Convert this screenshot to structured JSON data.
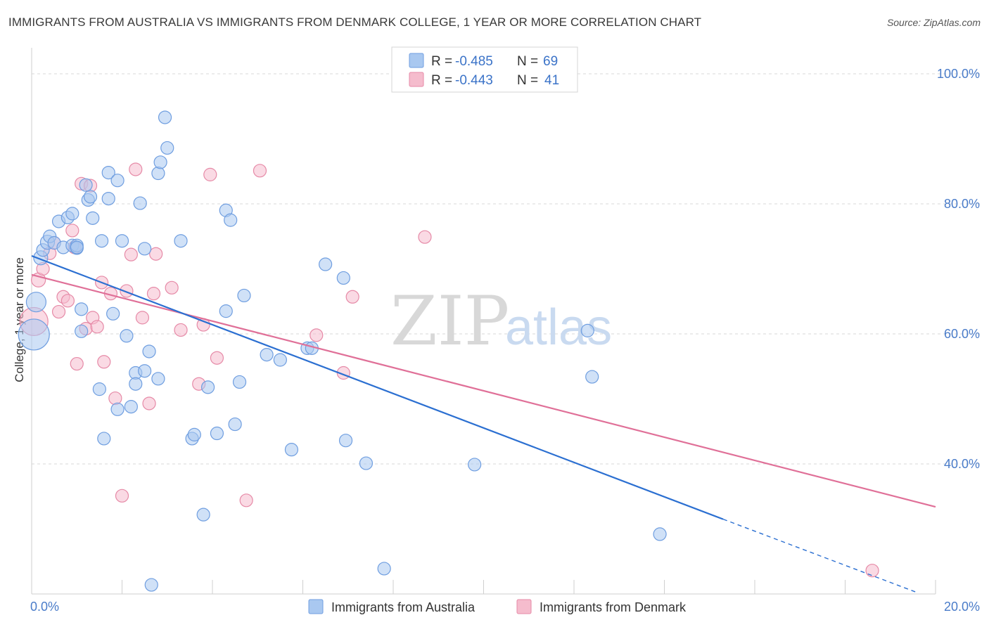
{
  "header": {
    "title": "IMMIGRANTS FROM AUSTRALIA VS IMMIGRANTS FROM DENMARK COLLEGE, 1 YEAR OR MORE CORRELATION CHART",
    "source": "Source: ZipAtlas.com"
  },
  "watermark": {
    "zip": "ZIP",
    "atlas": "atlas"
  },
  "legend": {
    "australia": {
      "r_label": "R =",
      "r_value": "-0.485",
      "n_label": "N =",
      "n_value": "69"
    },
    "denmark": {
      "r_label": "R =",
      "r_value": "-0.443",
      "n_label": "N =",
      "n_value": "41"
    }
  },
  "bottom_legend": {
    "australia": "Immigrants from Australia",
    "denmark": "Immigrants from Denmark"
  },
  "colors": {
    "australia_fill": "#a9c8f0",
    "australia_stroke": "#6f9ee0",
    "australia_line": "#2b6fd1",
    "denmark_fill": "#f5bccd",
    "denmark_stroke": "#e68aa7",
    "denmark_line": "#e07098",
    "grid": "#d8d8d8",
    "tick_label": "#4a7cc9"
  },
  "chart_data": {
    "type": "scatter",
    "title": "IMMIGRANTS FROM AUSTRALIA VS IMMIGRANTS FROM DENMARK COLLEGE, 1 YEAR OR MORE CORRELATION CHART",
    "xlabel": "",
    "ylabel": "College, 1 year or more",
    "xlim": [
      0,
      20
    ],
    "ylim": [
      20,
      104
    ],
    "x_tick_labels": [
      "0.0%",
      "20.0%"
    ],
    "y_ticks": [
      40,
      60,
      80,
      100
    ],
    "y_tick_labels": [
      "40.0%",
      "60.0%",
      "80.0%",
      "100.0%"
    ],
    "grid": true,
    "legend_position": "top-center",
    "series": [
      {
        "name": "Immigrants from Australia",
        "r": -0.485,
        "n": 69,
        "trend": {
          "x": [
            0,
            15.3
          ],
          "y": [
            72.0,
            31.5
          ]
        },
        "trend_dashed": {
          "x": [
            15.3,
            19.6
          ],
          "y": [
            31.5,
            20.2
          ]
        },
        "points": [
          {
            "x": 0.1,
            "y": 64.9,
            "s": 14
          },
          {
            "x": 0.05,
            "y": 59.9,
            "s": 22
          },
          {
            "x": 0.2,
            "y": 71.7,
            "s": 10
          },
          {
            "x": 0.25,
            "y": 72.9,
            "s": 9
          },
          {
            "x": 0.35,
            "y": 74.1,
            "s": 10
          },
          {
            "x": 0.4,
            "y": 75.0,
            "s": 9
          },
          {
            "x": 0.5,
            "y": 74.0,
            "s": 9
          },
          {
            "x": 0.6,
            "y": 77.3,
            "s": 9
          },
          {
            "x": 0.7,
            "y": 73.3,
            "s": 9
          },
          {
            "x": 0.8,
            "y": 77.9,
            "s": 9
          },
          {
            "x": 0.9,
            "y": 73.6,
            "s": 9
          },
          {
            "x": 0.9,
            "y": 78.5,
            "s": 9
          },
          {
            "x": 1.0,
            "y": 73.2,
            "s": 9
          },
          {
            "x": 1.0,
            "y": 73.6,
            "s": 9
          },
          {
            "x": 1.0,
            "y": 73.3,
            "s": 9
          },
          {
            "x": 1.1,
            "y": 63.8,
            "s": 9
          },
          {
            "x": 1.1,
            "y": 60.4,
            "s": 9
          },
          {
            "x": 1.2,
            "y": 82.9,
            "s": 9
          },
          {
            "x": 1.25,
            "y": 80.6,
            "s": 9
          },
          {
            "x": 1.3,
            "y": 81.1,
            "s": 9
          },
          {
            "x": 1.35,
            "y": 77.8,
            "s": 9
          },
          {
            "x": 1.5,
            "y": 51.5,
            "s": 9
          },
          {
            "x": 1.55,
            "y": 74.3,
            "s": 9
          },
          {
            "x": 1.6,
            "y": 43.9,
            "s": 9
          },
          {
            "x": 1.7,
            "y": 84.8,
            "s": 9
          },
          {
            "x": 1.7,
            "y": 80.8,
            "s": 9
          },
          {
            "x": 1.8,
            "y": 63.1,
            "s": 9
          },
          {
            "x": 1.9,
            "y": 83.6,
            "s": 9
          },
          {
            "x": 1.9,
            "y": 48.4,
            "s": 9
          },
          {
            "x": 2.0,
            "y": 74.3,
            "s": 9
          },
          {
            "x": 2.1,
            "y": 59.7,
            "s": 9
          },
          {
            "x": 2.2,
            "y": 48.8,
            "s": 9
          },
          {
            "x": 2.3,
            "y": 54.0,
            "s": 9
          },
          {
            "x": 2.3,
            "y": 52.3,
            "s": 9
          },
          {
            "x": 2.4,
            "y": 80.1,
            "s": 9
          },
          {
            "x": 2.5,
            "y": 54.3,
            "s": 9
          },
          {
            "x": 2.5,
            "y": 73.1,
            "s": 9
          },
          {
            "x": 2.6,
            "y": 57.3,
            "s": 9
          },
          {
            "x": 2.65,
            "y": 21.4,
            "s": 9
          },
          {
            "x": 2.8,
            "y": 53.1,
            "s": 9
          },
          {
            "x": 2.8,
            "y": 84.7,
            "s": 9
          },
          {
            "x": 2.85,
            "y": 86.4,
            "s": 9
          },
          {
            "x": 2.95,
            "y": 93.3,
            "s": 9
          },
          {
            "x": 3.0,
            "y": 88.6,
            "s": 9
          },
          {
            "x": 3.3,
            "y": 74.3,
            "s": 9
          },
          {
            "x": 3.55,
            "y": 43.9,
            "s": 9
          },
          {
            "x": 3.6,
            "y": 44.5,
            "s": 9
          },
          {
            "x": 3.8,
            "y": 32.2,
            "s": 9
          },
          {
            "x": 3.9,
            "y": 51.8,
            "s": 9
          },
          {
            "x": 4.1,
            "y": 44.7,
            "s": 9
          },
          {
            "x": 4.3,
            "y": 79.0,
            "s": 9
          },
          {
            "x": 4.3,
            "y": 63.5,
            "s": 9
          },
          {
            "x": 4.4,
            "y": 77.5,
            "s": 9
          },
          {
            "x": 4.5,
            "y": 46.1,
            "s": 9
          },
          {
            "x": 4.6,
            "y": 52.6,
            "s": 9
          },
          {
            "x": 4.7,
            "y": 65.9,
            "s": 9
          },
          {
            "x": 5.2,
            "y": 56.8,
            "s": 9
          },
          {
            "x": 5.5,
            "y": 56.0,
            "s": 9
          },
          {
            "x": 5.75,
            "y": 42.2,
            "s": 9
          },
          {
            "x": 6.1,
            "y": 57.8,
            "s": 9
          },
          {
            "x": 6.2,
            "y": 57.8,
            "s": 9
          },
          {
            "x": 6.5,
            "y": 70.7,
            "s": 9
          },
          {
            "x": 6.9,
            "y": 68.6,
            "s": 9
          },
          {
            "x": 6.95,
            "y": 43.6,
            "s": 9
          },
          {
            "x": 7.4,
            "y": 40.1,
            "s": 9
          },
          {
            "x": 7.8,
            "y": 23.9,
            "s": 9
          },
          {
            "x": 9.8,
            "y": 39.9,
            "s": 9
          },
          {
            "x": 12.3,
            "y": 60.5,
            "s": 9
          },
          {
            "x": 12.4,
            "y": 53.4,
            "s": 9
          },
          {
            "x": 13.9,
            "y": 29.2,
            "s": 9
          }
        ]
      },
      {
        "name": "Immigrants from Denmark",
        "r": -0.443,
        "n": 41,
        "trend": {
          "x": [
            0,
            20
          ],
          "y": [
            69.1,
            33.4
          ]
        },
        "points": [
          {
            "x": 0.05,
            "y": 61.9,
            "s": 20
          },
          {
            "x": 0.15,
            "y": 68.3,
            "s": 10
          },
          {
            "x": 0.25,
            "y": 70.0,
            "s": 9
          },
          {
            "x": 0.4,
            "y": 72.4,
            "s": 9
          },
          {
            "x": 0.5,
            "y": 74.0,
            "s": 9
          },
          {
            "x": 0.6,
            "y": 63.4,
            "s": 9
          },
          {
            "x": 0.7,
            "y": 65.7,
            "s": 9
          },
          {
            "x": 0.8,
            "y": 65.1,
            "s": 9
          },
          {
            "x": 0.9,
            "y": 75.9,
            "s": 9
          },
          {
            "x": 0.95,
            "y": 73.3,
            "s": 9
          },
          {
            "x": 1.0,
            "y": 55.4,
            "s": 9
          },
          {
            "x": 1.1,
            "y": 83.1,
            "s": 9
          },
          {
            "x": 1.2,
            "y": 60.8,
            "s": 9
          },
          {
            "x": 1.3,
            "y": 82.8,
            "s": 9
          },
          {
            "x": 1.35,
            "y": 62.5,
            "s": 9
          },
          {
            "x": 1.45,
            "y": 61.1,
            "s": 9
          },
          {
            "x": 1.55,
            "y": 67.9,
            "s": 9
          },
          {
            "x": 1.6,
            "y": 55.7,
            "s": 9
          },
          {
            "x": 1.75,
            "y": 66.2,
            "s": 9
          },
          {
            "x": 1.85,
            "y": 50.1,
            "s": 9
          },
          {
            "x": 2.0,
            "y": 35.1,
            "s": 9
          },
          {
            "x": 2.1,
            "y": 66.6,
            "s": 9
          },
          {
            "x": 2.2,
            "y": 72.2,
            "s": 9
          },
          {
            "x": 2.3,
            "y": 85.3,
            "s": 9
          },
          {
            "x": 2.45,
            "y": 62.5,
            "s": 9
          },
          {
            "x": 2.6,
            "y": 49.3,
            "s": 9
          },
          {
            "x": 2.7,
            "y": 66.2,
            "s": 9
          },
          {
            "x": 2.75,
            "y": 72.3,
            "s": 9
          },
          {
            "x": 3.1,
            "y": 67.1,
            "s": 9
          },
          {
            "x": 3.3,
            "y": 60.6,
            "s": 9
          },
          {
            "x": 3.7,
            "y": 52.3,
            "s": 9
          },
          {
            "x": 3.8,
            "y": 61.4,
            "s": 9
          },
          {
            "x": 3.95,
            "y": 84.5,
            "s": 9
          },
          {
            "x": 4.1,
            "y": 56.3,
            "s": 9
          },
          {
            "x": 4.75,
            "y": 34.4,
            "s": 9
          },
          {
            "x": 5.05,
            "y": 85.1,
            "s": 9
          },
          {
            "x": 6.3,
            "y": 59.8,
            "s": 9
          },
          {
            "x": 6.9,
            "y": 54.0,
            "s": 9
          },
          {
            "x": 7.1,
            "y": 65.7,
            "s": 9
          },
          {
            "x": 8.7,
            "y": 74.9,
            "s": 9
          },
          {
            "x": 18.6,
            "y": 23.6,
            "s": 9
          }
        ]
      }
    ]
  }
}
